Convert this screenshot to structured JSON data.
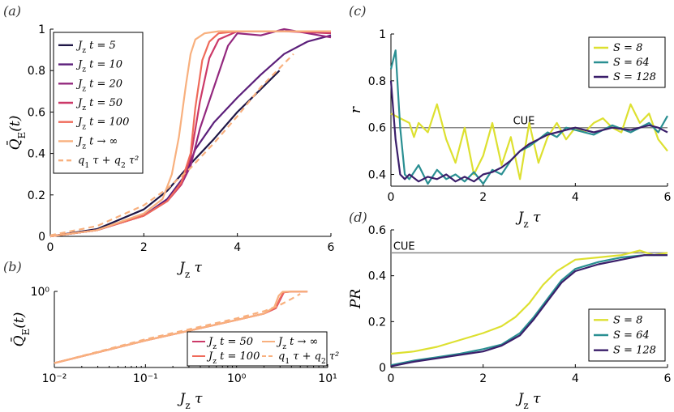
{
  "panel_labels": {
    "a": "(a)",
    "b": "(b)",
    "c": "(c)",
    "d": "(d)"
  },
  "chart_data": [
    {
      "id": "a",
      "type": "line",
      "xlabel": "J_z τ",
      "ylabel": "Q̄_E(t)",
      "xlim": [
        0,
        6
      ],
      "ylim": [
        0,
        1
      ],
      "xticks": [
        "0",
        "2",
        "4",
        "6"
      ],
      "yticks": [
        "0",
        "0.2",
        "0.4",
        "0.6",
        "0.8",
        "1"
      ],
      "legend_position": "top-left",
      "series": [
        {
          "name": "J_z t = 5",
          "color": "#1f1746",
          "dashed": false,
          "x": [
            0,
            1,
            2,
            2.5,
            3,
            3.5,
            4,
            4.5,
            4.9
          ],
          "y": [
            0,
            0.035,
            0.13,
            0.22,
            0.35,
            0.47,
            0.6,
            0.71,
            0.8
          ]
        },
        {
          "name": "J_z t = 10",
          "color": "#5b1f7a",
          "dashed": false,
          "x": [
            0,
            1,
            2,
            2.5,
            2.9,
            3.1,
            3.5,
            4,
            4.5,
            5,
            5.5,
            6
          ],
          "y": [
            0,
            0.03,
            0.1,
            0.18,
            0.3,
            0.42,
            0.55,
            0.67,
            0.78,
            0.88,
            0.94,
            0.97
          ]
        },
        {
          "name": "J_z t = 20",
          "color": "#93287e",
          "dashed": false,
          "x": [
            0,
            1,
            2,
            2.5,
            2.8,
            3.0,
            3.2,
            3.5,
            3.8,
            4.0,
            4.5,
            5,
            5.5,
            6
          ],
          "y": [
            0,
            0.03,
            0.1,
            0.17,
            0.25,
            0.34,
            0.52,
            0.72,
            0.92,
            0.98,
            0.97,
            1.0,
            0.98,
            0.96
          ]
        },
        {
          "name": "J_z t = 50",
          "color": "#cc3968",
          "dashed": false,
          "x": [
            0,
            1,
            2,
            2.5,
            2.8,
            3.0,
            3.2,
            3.4,
            3.6,
            3.8,
            4.0,
            5,
            6
          ],
          "y": [
            0,
            0.03,
            0.1,
            0.17,
            0.25,
            0.38,
            0.65,
            0.86,
            0.95,
            0.97,
            0.99,
            0.99,
            0.98
          ]
        },
        {
          "name": "J_z t = 100",
          "color": "#ef6a5a",
          "dashed": false,
          "x": [
            0,
            1,
            2,
            2.5,
            2.8,
            3.0,
            3.1,
            3.25,
            3.4,
            3.6,
            4.0,
            5,
            6
          ],
          "y": [
            0,
            0.03,
            0.1,
            0.17,
            0.26,
            0.4,
            0.62,
            0.85,
            0.94,
            0.98,
            0.99,
            0.99,
            0.99
          ]
        },
        {
          "name": "J_z t → ∞",
          "color": "#f8b07e",
          "dashed": false,
          "x": [
            0,
            1,
            2,
            2.4,
            2.6,
            2.75,
            2.9,
            3.0,
            3.1,
            3.3,
            3.6,
            4.0,
            5,
            6
          ],
          "y": [
            0,
            0.03,
            0.11,
            0.18,
            0.3,
            0.48,
            0.73,
            0.88,
            0.95,
            0.98,
            0.99,
            0.99,
            0.99,
            0.99
          ]
        },
        {
          "name": "q_1 τ + q_2 τ²",
          "color": "#f8b07e",
          "dashed": true,
          "x": [
            0,
            1,
            2,
            2.5,
            3,
            3.5,
            4,
            4.5,
            5.2
          ],
          "y": [
            0.005,
            0.05,
            0.15,
            0.23,
            0.33,
            0.45,
            0.58,
            0.72,
            0.88
          ]
        }
      ]
    },
    {
      "id": "b",
      "type": "line",
      "xscale": "log",
      "yscale": "log",
      "xlabel": "J_z τ",
      "ylabel": "Q̄_E(t)",
      "xlim": [
        0.01,
        10
      ],
      "ylim": [
        0.02,
        1
      ],
      "xticks": [
        "10⁻²",
        "10⁻¹",
        "10⁰",
        "10¹"
      ],
      "yticks": [
        "10⁰"
      ],
      "legend_position": "bottom-right",
      "series": [
        {
          "name": "J_z t = 50",
          "color": "#cc3968",
          "dashed": false,
          "x": [
            0.01,
            0.1,
            1,
            2,
            2.7,
            3.0,
            3.3,
            4,
            6
          ],
          "y": [
            0.025,
            0.08,
            0.23,
            0.32,
            0.42,
            0.65,
            0.95,
            0.99,
            0.99
          ]
        },
        {
          "name": "J_z t = 100",
          "color": "#ef6a5a",
          "dashed": false,
          "x": [
            0.01,
            0.1,
            1,
            2,
            2.7,
            3.0,
            3.3,
            4,
            6
          ],
          "y": [
            0.025,
            0.08,
            0.23,
            0.32,
            0.43,
            0.7,
            0.96,
            0.99,
            0.99
          ]
        },
        {
          "name": "J_z t → ∞",
          "color": "#f8b07e",
          "dashed": false,
          "x": [
            0.01,
            0.1,
            1,
            2,
            2.6,
            2.9,
            3.2,
            4,
            6
          ],
          "y": [
            0.025,
            0.08,
            0.23,
            0.32,
            0.45,
            0.8,
            0.98,
            0.99,
            0.99
          ]
        },
        {
          "name": "q_1 τ + q_2 τ²",
          "color": "#f8b07e",
          "dashed": true,
          "x": [
            0.01,
            0.1,
            1,
            2,
            3,
            4,
            5
          ],
          "y": [
            0.025,
            0.085,
            0.25,
            0.36,
            0.5,
            0.68,
            0.88
          ]
        }
      ]
    },
    {
      "id": "c",
      "type": "line",
      "xlabel": "J_z τ",
      "ylabel": "r",
      "xlim": [
        0,
        6
      ],
      "ylim": [
        0.35,
        1.0
      ],
      "xticks": [
        "0",
        "2",
        "4",
        "6"
      ],
      "yticks": [
        "0.4",
        "0.6",
        "0.8",
        "1"
      ],
      "hline": {
        "y": 0.6,
        "label": "CUE",
        "color": "#888888"
      },
      "legend_position": "top-right",
      "series": [
        {
          "name": "S = 8",
          "color": "#dde030",
          "dashed": false,
          "x": [
            0,
            0.2,
            0.4,
            0.5,
            0.6,
            0.8,
            1.0,
            1.2,
            1.4,
            1.6,
            1.8,
            2.0,
            2.2,
            2.4,
            2.6,
            2.8,
            3.0,
            3.2,
            3.4,
            3.6,
            3.8,
            4.0,
            4.2,
            4.4,
            4.6,
            4.8,
            5.0,
            5.2,
            5.4,
            5.6,
            5.8,
            6.0
          ],
          "y": [
            0.66,
            0.64,
            0.62,
            0.56,
            0.62,
            0.58,
            0.7,
            0.55,
            0.45,
            0.6,
            0.4,
            0.48,
            0.62,
            0.44,
            0.56,
            0.38,
            0.62,
            0.45,
            0.56,
            0.62,
            0.55,
            0.6,
            0.58,
            0.62,
            0.64,
            0.6,
            0.58,
            0.7,
            0.62,
            0.66,
            0.55,
            0.5
          ]
        },
        {
          "name": "S = 64",
          "color": "#2a8f92",
          "dashed": false,
          "x": [
            0,
            0.1,
            0.2,
            0.3,
            0.4,
            0.6,
            0.8,
            1.0,
            1.2,
            1.4,
            1.6,
            1.8,
            2.0,
            2.2,
            2.4,
            2.6,
            2.8,
            3.0,
            3.2,
            3.4,
            3.6,
            3.8,
            4.0,
            4.4,
            4.8,
            5.2,
            5.6,
            5.8,
            6.0
          ],
          "y": [
            0.85,
            0.93,
            0.6,
            0.4,
            0.38,
            0.44,
            0.36,
            0.42,
            0.38,
            0.4,
            0.37,
            0.41,
            0.36,
            0.42,
            0.4,
            0.46,
            0.5,
            0.52,
            0.55,
            0.58,
            0.56,
            0.6,
            0.59,
            0.57,
            0.61,
            0.58,
            0.62,
            0.58,
            0.65
          ]
        },
        {
          "name": "S = 128",
          "color": "#3a1e6a",
          "dashed": false,
          "x": [
            0,
            0.1,
            0.2,
            0.3,
            0.4,
            0.6,
            0.8,
            1.0,
            1.2,
            1.4,
            1.6,
            1.8,
            2.0,
            2.2,
            2.4,
            2.6,
            2.8,
            3.0,
            3.2,
            3.4,
            3.6,
            3.8,
            4.0,
            4.4,
            4.8,
            5.2,
            5.6,
            5.8,
            6.0
          ],
          "y": [
            0.8,
            0.55,
            0.4,
            0.38,
            0.4,
            0.37,
            0.39,
            0.38,
            0.4,
            0.37,
            0.39,
            0.37,
            0.4,
            0.41,
            0.43,
            0.46,
            0.5,
            0.53,
            0.55,
            0.57,
            0.58,
            0.59,
            0.6,
            0.58,
            0.6,
            0.59,
            0.61,
            0.6,
            0.58
          ]
        }
      ]
    },
    {
      "id": "d",
      "type": "line",
      "xlabel": "J_z τ",
      "ylabel": "PR",
      "xlim": [
        0,
        6
      ],
      "ylim": [
        0,
        0.6
      ],
      "xticks": [
        "0",
        "2",
        "4",
        "6"
      ],
      "yticks": [
        "0",
        "0.2",
        "0.4",
        "0.6"
      ],
      "hline": {
        "y": 0.5,
        "label": "CUE",
        "color": "#888888"
      },
      "legend_position": "bottom-right",
      "series": [
        {
          "name": "S = 8",
          "color": "#dde030",
          "dashed": false,
          "x": [
            0,
            0.5,
            1.0,
            1.5,
            2.0,
            2.4,
            2.7,
            3.0,
            3.3,
            3.6,
            4.0,
            4.5,
            5.0,
            5.4,
            5.7,
            6.0
          ],
          "y": [
            0.06,
            0.07,
            0.09,
            0.12,
            0.15,
            0.18,
            0.22,
            0.28,
            0.36,
            0.42,
            0.47,
            0.48,
            0.49,
            0.51,
            0.49,
            0.5
          ]
        },
        {
          "name": "S = 64",
          "color": "#2a8f92",
          "dashed": false,
          "x": [
            0,
            0.5,
            1.0,
            1.5,
            2.0,
            2.4,
            2.8,
            3.1,
            3.4,
            3.7,
            4.0,
            4.5,
            5.0,
            5.5,
            6.0
          ],
          "y": [
            0.01,
            0.03,
            0.045,
            0.06,
            0.08,
            0.1,
            0.15,
            0.22,
            0.3,
            0.38,
            0.43,
            0.46,
            0.48,
            0.49,
            0.49
          ]
        },
        {
          "name": "S = 128",
          "color": "#3a1e6a",
          "dashed": false,
          "x": [
            0,
            0.5,
            1.0,
            1.5,
            2.0,
            2.4,
            2.8,
            3.1,
            3.4,
            3.7,
            4.0,
            4.5,
            5.0,
            5.5,
            6.0
          ],
          "y": [
            0.005,
            0.025,
            0.04,
            0.055,
            0.07,
            0.095,
            0.14,
            0.21,
            0.29,
            0.37,
            0.42,
            0.45,
            0.47,
            0.49,
            0.49
          ]
        }
      ]
    }
  ]
}
